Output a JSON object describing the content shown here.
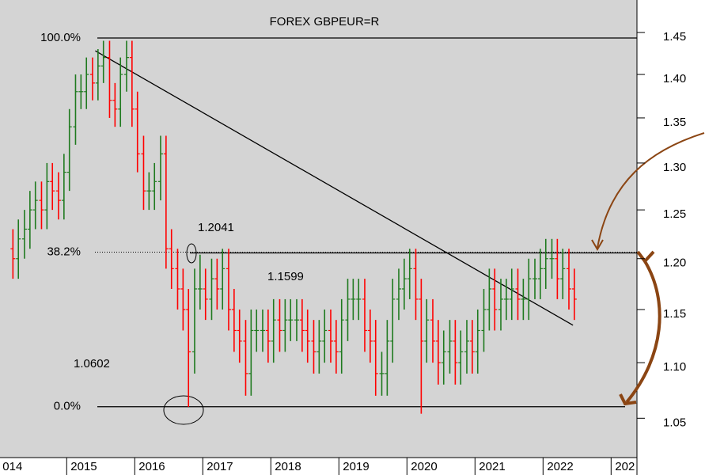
{
  "chart_data": {
    "type": "ohlc",
    "title": "FOREX GBPEUR=R",
    "x": [
      2014.21,
      2014.29,
      2014.38,
      2014.46,
      2014.54,
      2014.63,
      2014.71,
      2014.79,
      2014.88,
      2014.96,
      2015.04,
      2015.13,
      2015.21,
      2015.29,
      2015.38,
      2015.46,
      2015.54,
      2015.63,
      2015.71,
      2015.79,
      2015.88,
      2015.96,
      2016.04,
      2016.13,
      2016.21,
      2016.29,
      2016.38,
      2016.46,
      2016.54,
      2016.63,
      2016.71,
      2016.79,
      2016.88,
      2016.96,
      2017.04,
      2017.13,
      2017.21,
      2017.29,
      2017.38,
      2017.46,
      2017.54,
      2017.63,
      2017.71,
      2017.79,
      2017.88,
      2017.96,
      2018.04,
      2018.13,
      2018.21,
      2018.29,
      2018.38,
      2018.46,
      2018.54,
      2018.63,
      2018.71,
      2018.79,
      2018.88,
      2018.96,
      2019.04,
      2019.13,
      2019.21,
      2019.29,
      2019.38,
      2019.46,
      2019.54,
      2019.63,
      2019.71,
      2019.79,
      2019.88,
      2019.96,
      2020.04,
      2020.13,
      2020.21,
      2020.29,
      2020.38,
      2020.46,
      2020.54,
      2020.63,
      2020.71,
      2020.79,
      2020.88,
      2020.96,
      2021.04,
      2021.13,
      2021.21,
      2021.29,
      2021.38,
      2021.46,
      2021.54,
      2021.63,
      2021.71,
      2021.79,
      2021.88,
      2021.96,
      2022.04,
      2022.13,
      2022.21,
      2022.29,
      2022.38,
      2022.46
    ],
    "open": [
      1.21,
      1.2,
      1.22,
      1.23,
      1.25,
      1.26,
      1.25,
      1.28,
      1.27,
      1.26,
      1.29,
      1.34,
      1.38,
      1.38,
      1.4,
      1.39,
      1.41,
      1.42,
      1.37,
      1.36,
      1.4,
      1.42,
      1.36,
      1.31,
      1.27,
      1.27,
      1.28,
      1.31,
      1.21,
      1.19,
      1.17,
      1.15,
      1.11,
      1.17,
      1.17,
      1.16,
      1.18,
      1.17,
      1.19,
      1.15,
      1.13,
      1.12,
      1.09,
      1.13,
      1.13,
      1.13,
      1.12,
      1.14,
      1.13,
      1.14,
      1.14,
      1.14,
      1.13,
      1.12,
      1.11,
      1.12,
      1.13,
      1.12,
      1.11,
      1.14,
      1.16,
      1.16,
      1.16,
      1.13,
      1.12,
      1.09,
      1.09,
      1.12,
      1.16,
      1.17,
      1.18,
      1.19,
      1.16,
      1.12,
      1.14,
      1.12,
      1.1,
      1.11,
      1.12,
      1.1,
      1.11,
      1.12,
      1.11,
      1.13,
      1.15,
      1.17,
      1.15,
      1.16,
      1.16,
      1.17,
      1.16,
      1.16,
      1.18,
      1.18,
      1.19,
      1.2,
      1.2,
      1.18,
      1.19,
      1.17
    ],
    "high": [
      1.23,
      1.24,
      1.25,
      1.27,
      1.28,
      1.28,
      1.3,
      1.3,
      1.29,
      1.31,
      1.36,
      1.4,
      1.4,
      1.42,
      1.42,
      1.43,
      1.44,
      1.44,
      1.39,
      1.42,
      1.44,
      1.44,
      1.38,
      1.33,
      1.29,
      1.3,
      1.33,
      1.33,
      1.23,
      1.21,
      1.19,
      1.17,
      1.19,
      1.204,
      1.19,
      1.2,
      1.2,
      1.21,
      1.21,
      1.17,
      1.15,
      1.14,
      1.15,
      1.15,
      1.15,
      1.15,
      1.16,
      1.16,
      1.16,
      1.16,
      1.16,
      1.16,
      1.15,
      1.14,
      1.14,
      1.15,
      1.15,
      1.14,
      1.16,
      1.18,
      1.18,
      1.18,
      1.18,
      1.15,
      1.14,
      1.11,
      1.14,
      1.18,
      1.19,
      1.2,
      1.21,
      1.21,
      1.18,
      1.16,
      1.16,
      1.14,
      1.13,
      1.14,
      1.14,
      1.13,
      1.14,
      1.14,
      1.15,
      1.17,
      1.19,
      1.19,
      1.18,
      1.18,
      1.19,
      1.19,
      1.18,
      1.2,
      1.2,
      1.21,
      1.22,
      1.22,
      1.22,
      1.21,
      1.21,
      1.19
    ],
    "low": [
      1.18,
      1.18,
      1.2,
      1.21,
      1.23,
      1.23,
      1.23,
      1.25,
      1.24,
      1.24,
      1.27,
      1.32,
      1.36,
      1.36,
      1.37,
      1.37,
      1.39,
      1.35,
      1.34,
      1.34,
      1.38,
      1.34,
      1.29,
      1.25,
      1.25,
      1.25,
      1.26,
      1.19,
      1.17,
      1.15,
      1.13,
      1.06,
      1.09,
      1.15,
      1.14,
      1.14,
      1.15,
      1.15,
      1.13,
      1.11,
      1.1,
      1.07,
      1.07,
      1.11,
      1.11,
      1.1,
      1.1,
      1.11,
      1.11,
      1.12,
      1.12,
      1.11,
      1.1,
      1.09,
      1.09,
      1.1,
      1.1,
      1.09,
      1.09,
      1.12,
      1.14,
      1.14,
      1.11,
      1.1,
      1.07,
      1.07,
      1.07,
      1.1,
      1.14,
      1.15,
      1.16,
      1.14,
      1.054,
      1.1,
      1.1,
      1.08,
      1.08,
      1.09,
      1.08,
      1.08,
      1.09,
      1.09,
      1.09,
      1.11,
      1.13,
      1.13,
      1.13,
      1.14,
      1.14,
      1.14,
      1.14,
      1.14,
      1.16,
      1.16,
      1.17,
      1.18,
      1.16,
      1.16,
      1.15,
      1.14
    ],
    "close": [
      1.2,
      1.22,
      1.23,
      1.25,
      1.26,
      1.25,
      1.28,
      1.27,
      1.26,
      1.29,
      1.34,
      1.38,
      1.38,
      1.4,
      1.39,
      1.41,
      1.42,
      1.37,
      1.36,
      1.4,
      1.42,
      1.36,
      1.31,
      1.27,
      1.27,
      1.28,
      1.31,
      1.21,
      1.19,
      1.17,
      1.15,
      1.11,
      1.17,
      1.17,
      1.16,
      1.18,
      1.17,
      1.19,
      1.15,
      1.13,
      1.12,
      1.09,
      1.13,
      1.13,
      1.13,
      1.12,
      1.14,
      1.13,
      1.14,
      1.14,
      1.14,
      1.13,
      1.12,
      1.11,
      1.12,
      1.13,
      1.12,
      1.11,
      1.14,
      1.16,
      1.16,
      1.16,
      1.13,
      1.12,
      1.09,
      1.09,
      1.12,
      1.16,
      1.17,
      1.18,
      1.19,
      1.16,
      1.12,
      1.14,
      1.12,
      1.1,
      1.11,
      1.12,
      1.1,
      1.11,
      1.12,
      1.11,
      1.13,
      1.15,
      1.17,
      1.15,
      1.16,
      1.16,
      1.17,
      1.16,
      1.16,
      1.18,
      1.18,
      1.19,
      1.2,
      1.2,
      1.18,
      1.19,
      1.17,
      1.16
    ],
    "up_color": "#1f7a1f",
    "down_color": "#ff0000",
    "xlim": [
      2014.02,
      2023.38
    ],
    "xticks": [
      {
        "value": 2014,
        "label": "014"
      },
      2015,
      2016,
      2017,
      2018,
      2019,
      2020,
      2021,
      2022,
      {
        "value": 2023,
        "label": "202"
      }
    ],
    "ylim": [
      1.016,
      1.49
    ],
    "yticks": [
      1.05,
      {
        "value": 1.1,
        "label": "1.10"
      },
      1.15,
      {
        "value": 1.2,
        "label": "1.20"
      },
      1.25,
      {
        "value": 1.3,
        "label": "1.30"
      },
      1.35,
      {
        "value": 1.4,
        "label": "1.40"
      },
      1.45
    ],
    "log_scale": true,
    "levels": [
      {
        "label": "100.0%",
        "value": 1.4434
      },
      {
        "label": "38.2%",
        "value": 1.2066
      },
      {
        "label": "0.0%",
        "value": 1.0602
      }
    ],
    "trendline": {
      "x": [
        2015.42,
        2022.44
      ],
      "y": [
        1.428,
        1.135
      ]
    },
    "annotations": [
      1.2041,
      1.1599,
      1.0602
    ]
  }
}
